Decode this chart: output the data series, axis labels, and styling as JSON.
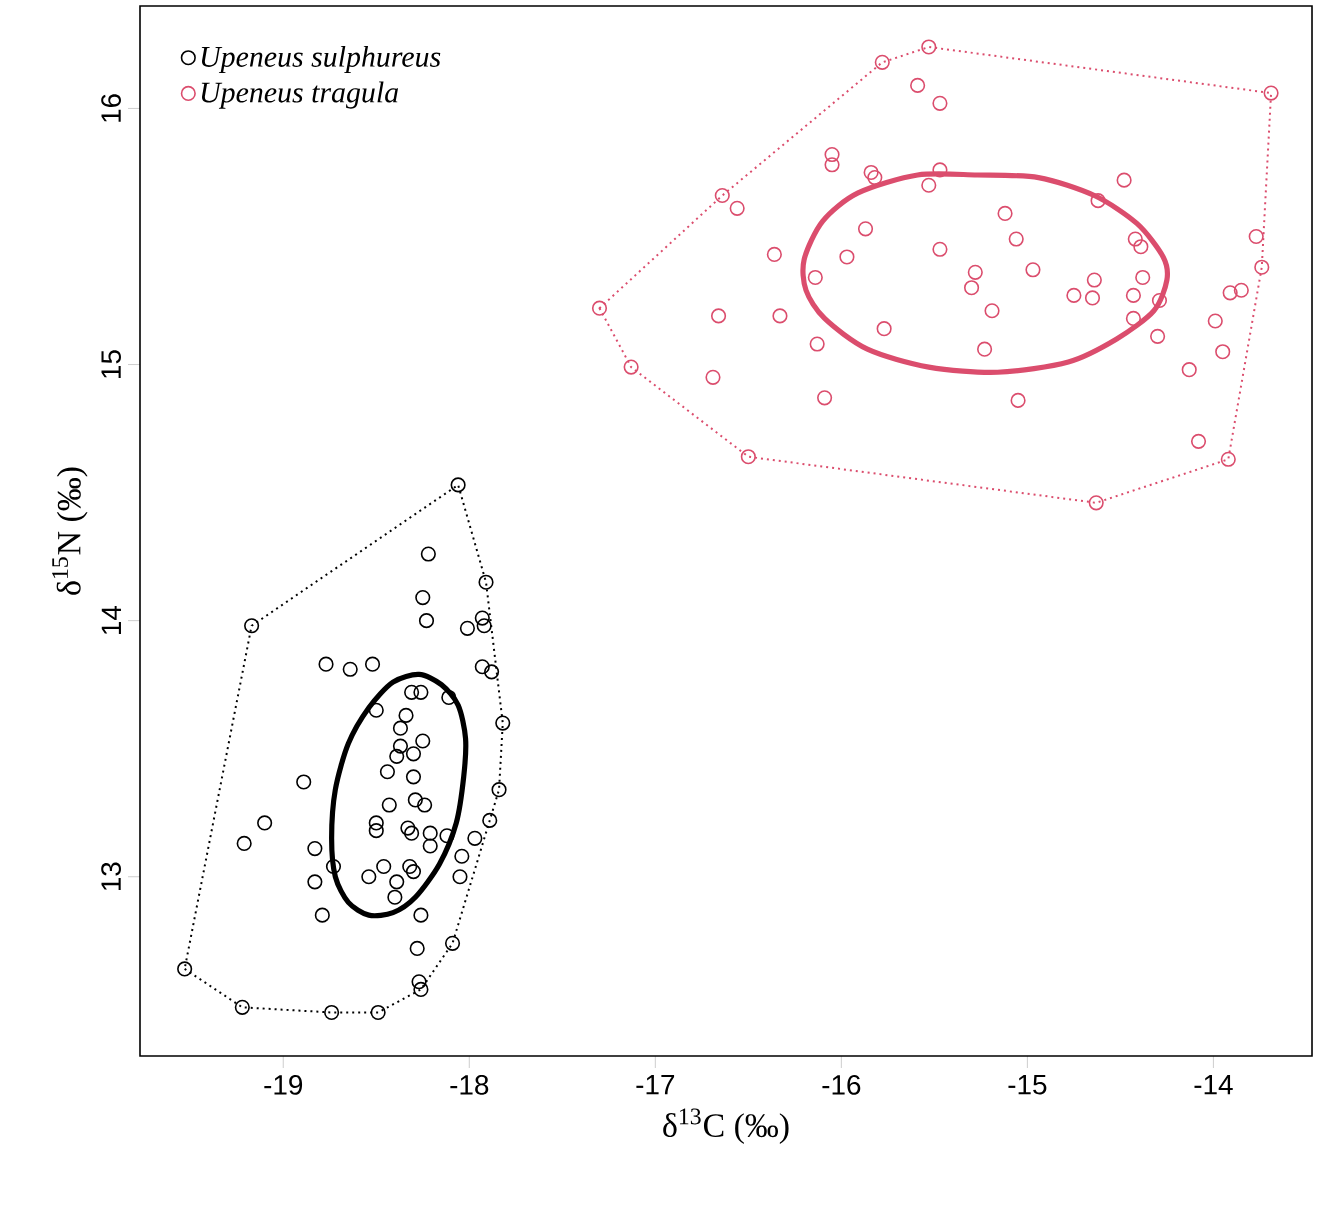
{
  "chart_data": {
    "type": "scatter",
    "xlabel": "δ$^{13}$C (‰)",
    "ylabel": "δ$^{15}$N (‰)",
    "xlim": [
      -19.77,
      -13.47
    ],
    "ylim": [
      12.3,
      16.4
    ],
    "xticks": [
      -19,
      -18,
      -17,
      -16,
      -15,
      -14
    ],
    "yticks": [
      13,
      14,
      15,
      16
    ],
    "grid": false,
    "legend": "top left",
    "series": [
      {
        "name": "Upeneus sulphureus",
        "color": "#000000",
        "marker": "circle",
        "x": [
          -18.06,
          -18.22,
          -17.91,
          -19.17,
          -18.25,
          -18.23,
          -18.01,
          -17.93,
          -17.92,
          -18.77,
          -18.64,
          -18.52,
          -17.93,
          -17.88,
          -18.31,
          -18.26,
          -18.11,
          -17.82,
          -18.5,
          -18.34,
          -18.37,
          -18.25,
          -18.37,
          -18.39,
          -18.3,
          -18.44,
          -18.3,
          -18.89,
          -17.84,
          -18.43,
          -18.29,
          -18.24,
          -17.89,
          -19.1,
          -18.5,
          -18.5,
          -18.33,
          -18.31,
          -18.21,
          -18.12,
          -18.21,
          -19.21,
          -17.97,
          -18.83,
          -18.04,
          -18.73,
          -18.46,
          -18.54,
          -18.32,
          -18.3,
          -18.39,
          -18.05,
          -18.83,
          -18.4,
          -18.79,
          -18.26,
          -18.09,
          -18.28,
          -18.27,
          -18.26,
          -19.53,
          -19.22,
          -18.74,
          -18.49
        ],
        "values": [
          14.53,
          14.26,
          14.15,
          13.98,
          14.09,
          14.0,
          13.97,
          14.01,
          13.98,
          13.83,
          13.81,
          13.83,
          13.82,
          13.8,
          13.72,
          13.72,
          13.7,
          13.6,
          13.65,
          13.63,
          13.58,
          13.53,
          13.51,
          13.47,
          13.48,
          13.41,
          13.39,
          13.37,
          13.34,
          13.28,
          13.3,
          13.28,
          13.22,
          13.21,
          13.21,
          13.18,
          13.19,
          13.17,
          13.17,
          13.16,
          13.12,
          13.13,
          13.15,
          13.11,
          13.08,
          13.04,
          13.04,
          13.0,
          13.04,
          13.02,
          12.98,
          13.0,
          12.98,
          12.92,
          12.85,
          12.85,
          12.74,
          12.72,
          12.59,
          12.56,
          12.64,
          12.49,
          12.47,
          12.47
        ]
      },
      {
        "name": "Upeneus tragula",
        "color": "#db4d6d",
        "marker": "circle",
        "x": [
          -15.53,
          -15.78,
          -15.59,
          -15.47,
          -16.05,
          -16.05,
          -15.84,
          -15.82,
          -15.47,
          -15.53,
          -16.64,
          -16.56,
          -15.87,
          -16.36,
          -15.97,
          -15.47,
          -16.14,
          -16.66,
          -16.33,
          -15.77,
          -16.13,
          -17.3,
          -17.13,
          -16.69,
          -16.09,
          -16.5,
          -13.69,
          -14.48,
          -14.62,
          -15.12,
          -15.06,
          -14.42,
          -14.39,
          -13.77,
          -13.74,
          -15.28,
          -15.3,
          -14.97,
          -14.64,
          -14.75,
          -14.65,
          -14.38,
          -14.43,
          -14.29,
          -13.91,
          -13.85,
          -15.19,
          -14.43,
          -13.99,
          -14.3,
          -15.23,
          -13.95,
          -14.13,
          -15.05,
          -14.08,
          -13.92,
          -14.63
        ],
        "values": [
          16.24,
          16.18,
          16.09,
          16.02,
          15.82,
          15.78,
          15.75,
          15.73,
          15.76,
          15.7,
          15.66,
          15.61,
          15.53,
          15.43,
          15.42,
          15.45,
          15.34,
          15.19,
          15.19,
          15.14,
          15.08,
          15.22,
          14.99,
          14.95,
          14.87,
          14.64,
          16.06,
          15.72,
          15.64,
          15.59,
          15.49,
          15.49,
          15.46,
          15.5,
          15.38,
          15.36,
          15.3,
          15.37,
          15.33,
          15.27,
          15.26,
          15.34,
          15.27,
          15.25,
          15.28,
          15.29,
          15.21,
          15.18,
          15.17,
          15.11,
          15.06,
          15.05,
          14.98,
          14.86,
          14.7,
          14.63,
          14.46
        ]
      }
    ]
  }
}
